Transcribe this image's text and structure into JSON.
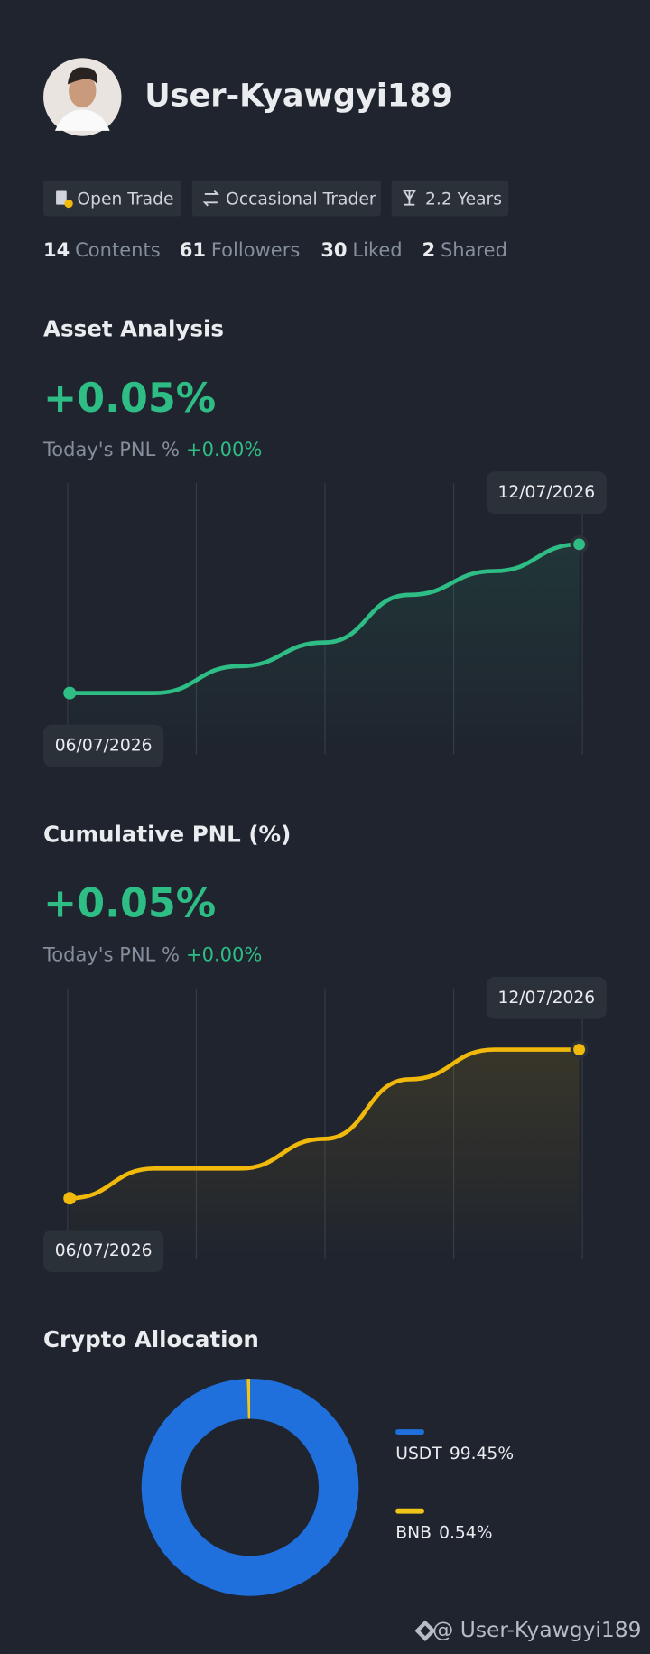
{
  "profile": {
    "username": "User-Kyawgyi189",
    "tags": [
      "Open Trade",
      "Occasional Trader",
      "2.2 Years"
    ],
    "stats": [
      {
        "value": 14,
        "label": "Contents"
      },
      {
        "value": 61,
        "label": "Followers"
      },
      {
        "value": 30,
        "label": "Liked"
      },
      {
        "value": 2,
        "label": "Shared"
      }
    ]
  },
  "chart_data": [
    {
      "type": "line",
      "title": "Asset Analysis",
      "headline": "+0.05%",
      "pnl_label": "Today's PNL %",
      "pnl_value": "+0.00%",
      "x": [
        "06/07/2026",
        null,
        null,
        null,
        null,
        null,
        "12/07/2026"
      ],
      "series": [
        {
          "color": "#2ebd85",
          "values": [
            0,
            0,
            0.009,
            0.017,
            0.033,
            0.041,
            0.05
          ]
        }
      ]
    },
    {
      "type": "line",
      "title": "Cumulative PNL (%)",
      "headline": "+0.05%",
      "pnl_label": "Today's PNL %",
      "pnl_value": "+0.00%",
      "x": [
        "06/07/2026",
        null,
        null,
        null,
        null,
        null,
        "12/07/2026"
      ],
      "series": [
        {
          "color": "#f0b90b",
          "values": [
            0,
            0.01,
            0.01,
            0.02,
            0.04,
            0.05,
            0.05
          ]
        }
      ]
    },
    {
      "type": "pie",
      "title": "Crypto Allocation",
      "categories": [
        "USDT",
        "BNB"
      ],
      "values": [
        99.45,
        0.54
      ],
      "value_labels": [
        "99.45%",
        "0.54%"
      ],
      "colors": [
        "#1f6fdc",
        "#f0c419"
      ]
    }
  ],
  "footer": "@ User-Kyawgyi189"
}
